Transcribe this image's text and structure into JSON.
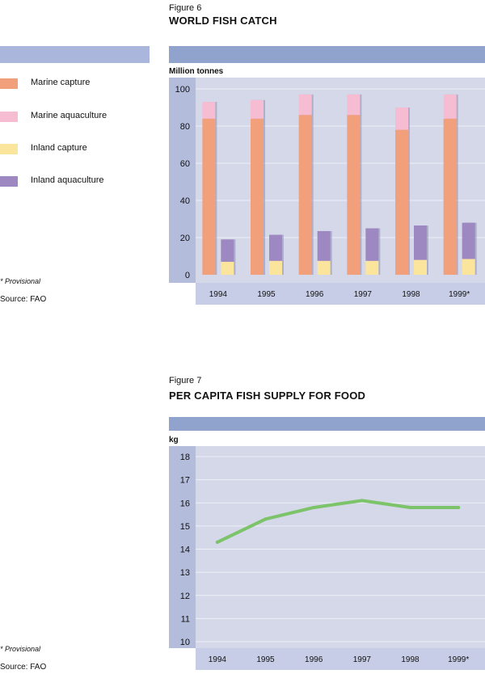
{
  "figure6": {
    "label": "Figure 6",
    "title": "WORLD FISH CATCH",
    "unit": "Million tonnes",
    "note": "* Provisional",
    "source": "Source: FAO",
    "colors": {
      "marine_capture": "#f2a07c",
      "marine_aquaculture": "#f6bcd2",
      "inland_capture": "#fbe49c",
      "inland_aquaculture": "#9e88c2"
    }
  },
  "figure7": {
    "label": "Figure 7",
    "title": "PER CAPITA FISH SUPPLY FOR FOOD",
    "unit": "kg",
    "note": "* Provisional",
    "source": "Source: FAO",
    "line_color": "#7cc36a"
  },
  "chart_data": [
    {
      "type": "bar",
      "title": "WORLD FISH CATCH",
      "ylabel": "Million tonnes",
      "categories": [
        "1994",
        "1995",
        "1996",
        "1997",
        "1998",
        "1999*"
      ],
      "ylim": [
        0,
        100
      ],
      "yticks": [
        0,
        20,
        40,
        60,
        80,
        100
      ],
      "stacks": [
        {
          "stack": "marine",
          "series": [
            {
              "name": "Marine capture",
              "values": [
                84,
                84,
                86,
                86,
                78,
                84
              ]
            },
            {
              "name": "Marine aquaculture",
              "values": [
                9,
                10,
                11,
                11,
                12,
                13
              ]
            }
          ]
        },
        {
          "stack": "inland",
          "series": [
            {
              "name": "Inland capture",
              "values": [
                7,
                7.5,
                7.5,
                7.5,
                8,
                8.5
              ]
            },
            {
              "name": "Inland aquaculture",
              "values": [
                12,
                14,
                16,
                17.5,
                18.5,
                19.5
              ]
            }
          ]
        }
      ],
      "legend": [
        "Marine capture",
        "Marine aquaculture",
        "Inland capture",
        "Inland aquaculture"
      ]
    },
    {
      "type": "line",
      "title": "PER CAPITA FISH SUPPLY FOR FOOD",
      "ylabel": "kg",
      "categories": [
        "1994",
        "1995",
        "1996",
        "1997",
        "1998",
        "1999*"
      ],
      "series": [
        {
          "name": "Per capita fish supply",
          "values": [
            14.3,
            15.3,
            15.8,
            16.1,
            15.8,
            15.8
          ]
        }
      ],
      "ylim": [
        10,
        18
      ],
      "yticks": [
        10,
        11,
        12,
        13,
        14,
        15,
        16,
        17,
        18
      ]
    }
  ]
}
